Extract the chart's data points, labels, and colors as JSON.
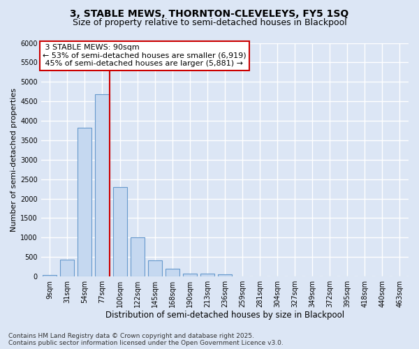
{
  "title1": "3, STABLE MEWS, THORNTON-CLEVELEYS, FY5 1SQ",
  "title2": "Size of property relative to semi-detached houses in Blackpool",
  "xlabel": "Distribution of semi-detached houses by size in Blackpool",
  "ylabel": "Number of semi-detached properties",
  "footnote": "Contains HM Land Registry data © Crown copyright and database right 2025.\nContains public sector information licensed under the Open Government Licence v3.0.",
  "categories": [
    "9sqm",
    "31sqm",
    "54sqm",
    "77sqm",
    "100sqm",
    "122sqm",
    "145sqm",
    "168sqm",
    "190sqm",
    "213sqm",
    "236sqm",
    "259sqm",
    "281sqm",
    "304sqm",
    "327sqm",
    "349sqm",
    "372sqm",
    "395sqm",
    "418sqm",
    "440sqm",
    "463sqm"
  ],
  "values": [
    40,
    430,
    3820,
    4680,
    2300,
    1000,
    410,
    200,
    80,
    65,
    55,
    0,
    0,
    0,
    0,
    0,
    0,
    0,
    0,
    0,
    0
  ],
  "bar_color": "#c5d8f0",
  "bar_edge_color": "#6699cc",
  "vline_color": "#cc0000",
  "vline_x": 3.4,
  "property_size": "90sqm",
  "property_name": "3 STABLE MEWS",
  "pct_smaller": 53,
  "n_smaller": 6919,
  "pct_larger": 45,
  "n_larger": 5881,
  "annotation_box_edgecolor": "#cc0000",
  "ylim": [
    0,
    6000
  ],
  "yticks": [
    0,
    500,
    1000,
    1500,
    2000,
    2500,
    3000,
    3500,
    4000,
    4500,
    5000,
    5500,
    6000
  ],
  "background_color": "#dce6f5",
  "grid_color": "#ffffff",
  "title1_fontsize": 10,
  "title2_fontsize": 9,
  "xlabel_fontsize": 8.5,
  "ylabel_fontsize": 8,
  "tick_fontsize": 7,
  "annotation_fontsize": 8,
  "footnote_fontsize": 6.5
}
